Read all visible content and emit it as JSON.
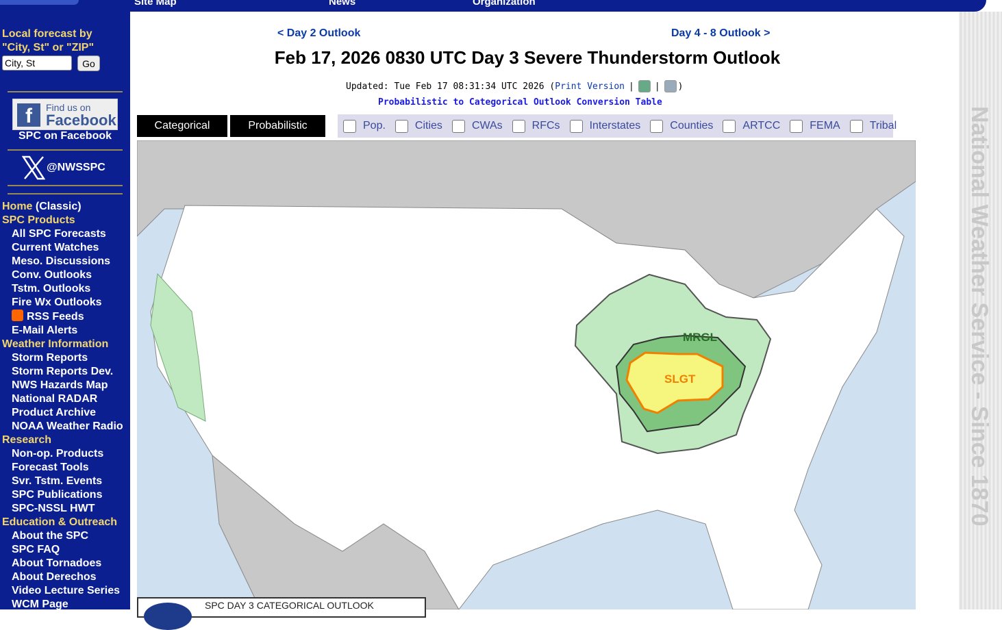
{
  "topnav": [
    "Site Map",
    "News",
    "Organization"
  ],
  "sidebar": {
    "search_label": "Local forecast by \"City, St\" or \"ZIP\"",
    "search_value": "City, St",
    "go": "Go",
    "fb_top": "Find us on",
    "fb_main": "Facebook",
    "fb_label": "SPC on Facebook",
    "x_handle": "@NWSSPC",
    "nav": [
      {
        "t": "h",
        "label": "Home",
        "extra": " (Classic)"
      },
      {
        "t": "h",
        "label": "SPC Products"
      },
      {
        "t": "w",
        "label": "All SPC Forecasts"
      },
      {
        "t": "w",
        "label": "Current Watches"
      },
      {
        "t": "w",
        "label": "Meso. Discussions"
      },
      {
        "t": "w",
        "label": "Conv. Outlooks"
      },
      {
        "t": "w",
        "label": "Tstm. Outlooks"
      },
      {
        "t": "w",
        "label": "Fire Wx Outlooks"
      },
      {
        "t": "w",
        "label": "RSS Feeds",
        "icon": "rss"
      },
      {
        "t": "w",
        "label": "E-Mail Alerts"
      },
      {
        "t": "h",
        "label": "Weather Information"
      },
      {
        "t": "w",
        "label": "Storm Reports"
      },
      {
        "t": "w",
        "label": "Storm Reports Dev."
      },
      {
        "t": "w",
        "label": "NWS Hazards Map"
      },
      {
        "t": "w",
        "label": "National RADAR"
      },
      {
        "t": "w",
        "label": "Product Archive"
      },
      {
        "t": "w",
        "label": "NOAA Weather Radio"
      },
      {
        "t": "h",
        "label": "Research"
      },
      {
        "t": "w",
        "label": "Non-op. Products"
      },
      {
        "t": "w",
        "label": "Forecast Tools"
      },
      {
        "t": "w",
        "label": "Svr. Tstm. Events"
      },
      {
        "t": "w",
        "label": "SPC Publications"
      },
      {
        "t": "w",
        "label": "SPC-NSSL HWT"
      },
      {
        "t": "h",
        "label": "Education & Outreach"
      },
      {
        "t": "w",
        "label": "About the SPC"
      },
      {
        "t": "w",
        "label": "SPC FAQ"
      },
      {
        "t": "w",
        "label": "About Tornadoes"
      },
      {
        "t": "w",
        "label": "About Derechos"
      },
      {
        "t": "w",
        "label": "Video Lecture Series"
      },
      {
        "t": "w",
        "label": "WCM Page"
      }
    ]
  },
  "main": {
    "prev": "< Day 2 Outlook",
    "next": "Day 4 - 8 Outlook >",
    "title": "Feb 17, 2026 0830 UTC Day 3 Severe Thunderstorm Outlook",
    "updated": "Updated: Tue Feb 17 08:31:34 UTC 2026 (",
    "print": "Print Version",
    "sep": "|",
    "close": ")",
    "conversion": "Probabilistic to Categorical Outlook Conversion Table",
    "tabs": [
      "Categorical",
      "Probabilistic"
    ],
    "layers": [
      "Pop.",
      "Cities",
      "CWAs",
      "RFCs",
      "Interstates",
      "Counties",
      "ARTCC",
      "FEMA",
      "Tribal"
    ],
    "map": {
      "labels": [
        "MRGL",
        "SLGT"
      ],
      "colors": {
        "TSTM": "#c1e9c1",
        "MRGL": "#7fc57f",
        "SLGT": "#f6f67f",
        "ocean": "#cfe0f0",
        "foreign": "#c8c8c8"
      }
    },
    "legend_title": "SPC DAY 3 CATEGORICAL OUTLOOK"
  },
  "banner": "National Weather Service - Since 1870"
}
